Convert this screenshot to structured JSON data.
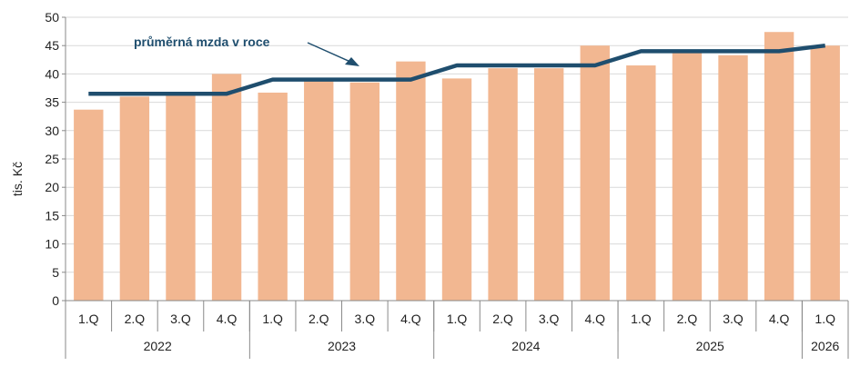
{
  "chart_data": {
    "type": "bar",
    "ylabel": "tis. Kč",
    "ylim": [
      0,
      50
    ],
    "yticks": [
      0,
      5,
      10,
      15,
      20,
      25,
      30,
      35,
      40,
      45,
      50
    ],
    "grid": true,
    "categories": [
      "1.Q",
      "2.Q",
      "3.Q",
      "4.Q",
      "1.Q",
      "2.Q",
      "3.Q",
      "4.Q",
      "1.Q",
      "2.Q",
      "3.Q",
      "4.Q",
      "1.Q",
      "2.Q",
      "3.Q",
      "4.Q",
      "1.Q"
    ],
    "years": [
      {
        "label": "2022",
        "count": 4
      },
      {
        "label": "2023",
        "count": 4
      },
      {
        "label": "2024",
        "count": 4
      },
      {
        "label": "2025",
        "count": 4
      },
      {
        "label": "2026",
        "count": 1
      }
    ],
    "series": [
      {
        "kind": "bar",
        "color": "#f2b791",
        "values": [
          33.7,
          36.0,
          36.2,
          40.0,
          36.7,
          38.9,
          38.5,
          42.2,
          39.2,
          41.0,
          41.0,
          45.0,
          41.5,
          43.8,
          43.3,
          47.4,
          45.0
        ]
      },
      {
        "name": "průměrná mzda v roce",
        "kind": "line",
        "color": "#1f4e6e",
        "values": [
          36.5,
          36.5,
          36.5,
          36.5,
          39.0,
          39.0,
          39.0,
          39.0,
          41.5,
          41.5,
          41.5,
          41.5,
          44.0,
          44.0,
          44.0,
          44.0,
          45.0
        ]
      }
    ],
    "annotation": {
      "text": "průměrná mzda v roce"
    }
  }
}
